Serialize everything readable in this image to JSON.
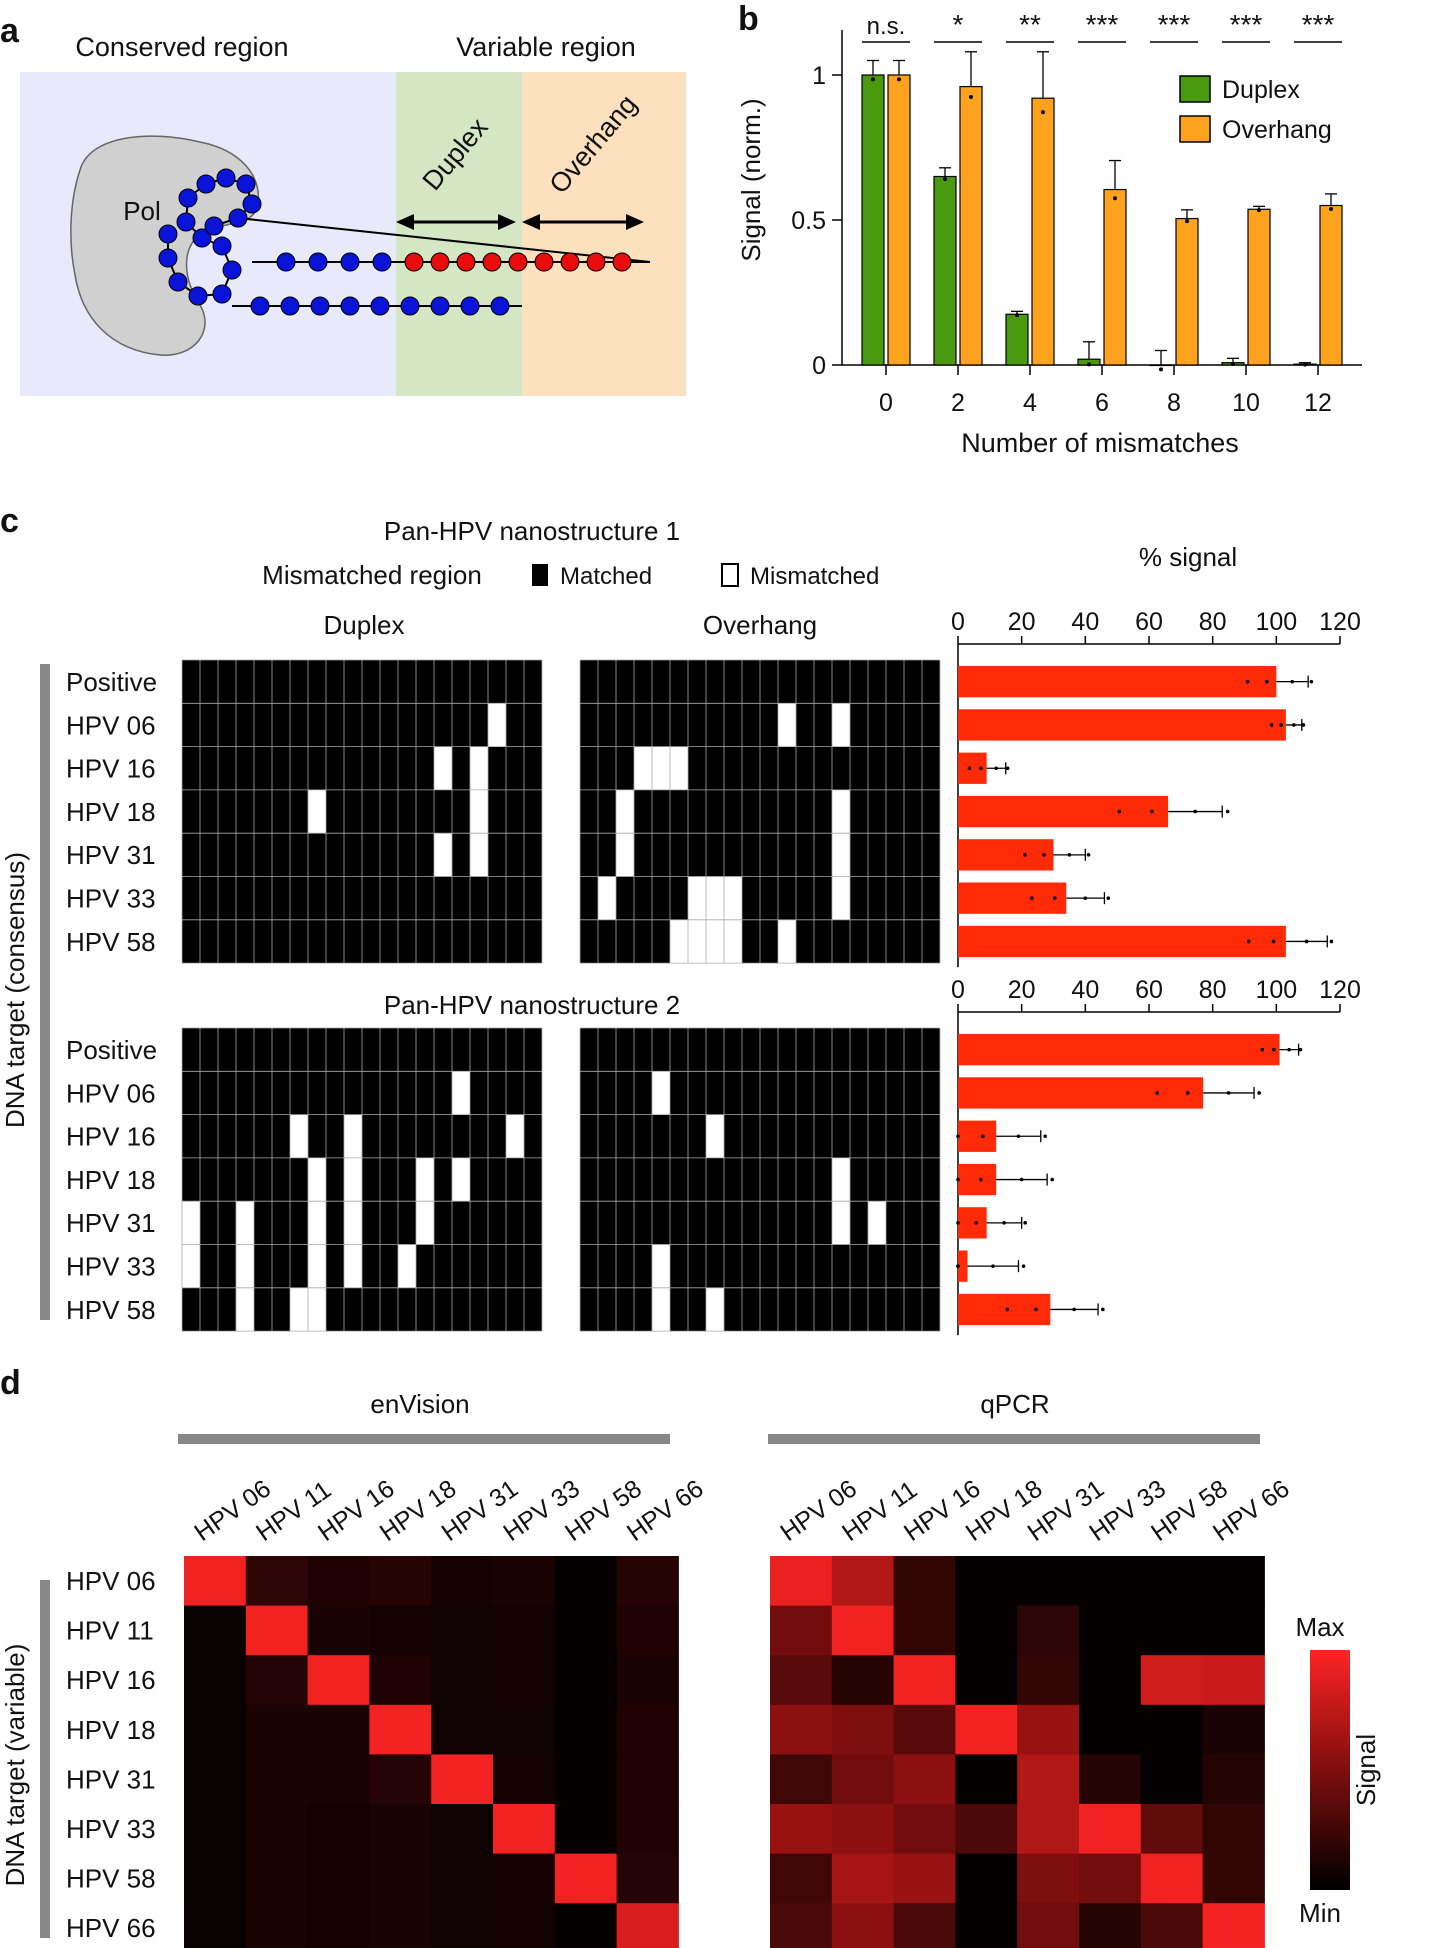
{
  "colors": {
    "duplex": "#4a9a0f",
    "overhang": "#ffa21e",
    "signal_bar": "#ff2a08",
    "conserved_bg": "#e8e9fb",
    "duplex_bg": "#d5e6c5",
    "overhang_bg": "#fde1bf",
    "node_blue": "#0a14d8",
    "node_red": "#e80c0c",
    "pol": "#d0d0d0",
    "heat_max": "#ff2424",
    "heat_min": "#000000",
    "track_gray": "#888888"
  },
  "panel_a": {
    "letter": "a",
    "conserved_label": "Conserved region",
    "variable_label": "Variable region",
    "pol_label": "Pol",
    "duplex_label": "Duplex",
    "overhang_label": "Overhang"
  },
  "panel_b": {
    "letter": "b",
    "xlabel": "Number of mismatches",
    "ylabel": "Signal (norm.)",
    "yticks": [
      "0",
      "0.5",
      "1"
    ],
    "legend": [
      "Duplex",
      "Overhang"
    ]
  },
  "panel_c": {
    "letter": "c",
    "title1": "Pan-HPV nanostructure 1",
    "title2": "Pan-HPV nanostructure 2",
    "mismatch_label": "Mismatched region",
    "matched_label": "Matched",
    "mismatched_label": "Mismatched",
    "duplex_label": "Duplex",
    "overhang_label": "Overhang",
    "signal_label": "% signal",
    "yaxis_label": "DNA target (consensus)",
    "row_labels": [
      "Positive",
      "HPV 06",
      "HPV 16",
      "HPV 18",
      "HPV 31",
      "HPV 33",
      "HPV 58"
    ],
    "xticks": [
      "0",
      "20",
      "40",
      "60",
      "80",
      "100",
      "120"
    ],
    "grid_white": {
      "s1_duplex": [
        [],
        [
          18
        ],
        [
          15,
          17
        ],
        [
          8,
          17
        ],
        [
          15,
          17
        ],
        [],
        []
      ],
      "s1_overhang": [
        [],
        [
          12,
          15
        ],
        [
          4,
          5,
          6
        ],
        [
          3,
          15
        ],
        [
          3,
          15
        ],
        [
          2,
          7,
          8,
          9,
          15
        ],
        [
          6,
          7,
          8,
          9,
          12
        ]
      ],
      "s2_duplex": [
        [],
        [
          16
        ],
        [
          7,
          10,
          19
        ],
        [
          8,
          10,
          14,
          16
        ],
        [
          1,
          4,
          8,
          10,
          14
        ],
        [
          1,
          4,
          8,
          10,
          13
        ],
        [
          4,
          7,
          8
        ]
      ],
      "s2_overhang": [
        [],
        [
          5
        ],
        [
          8
        ],
        [
          15
        ],
        [
          15,
          17
        ],
        [
          5
        ],
        [
          5,
          8
        ]
      ]
    }
  },
  "panel_d": {
    "letter": "d",
    "envision_label": "enVision",
    "qpcr_label": "qPCR",
    "yaxis_label": "DNA target (variable)",
    "col_labels": [
      "HPV 06",
      "HPV 11",
      "HPV 16",
      "HPV 18",
      "HPV 31",
      "HPV 33",
      "HPV 58",
      "HPV 66"
    ],
    "row_labels": [
      "HPV 06",
      "HPV 11",
      "HPV 16",
      "HPV 18",
      "HPV 31",
      "HPV 33",
      "HPV 58",
      "HPV 66"
    ],
    "colorbar_max": "Max",
    "colorbar_min": "Min",
    "colorbar_label": "Signal"
  },
  "chart_data": [
    {
      "type": "bar",
      "panel": "b",
      "categories": [
        "0",
        "2",
        "4",
        "6",
        "8",
        "10",
        "12"
      ],
      "series": [
        {
          "name": "Duplex",
          "values": [
            1.0,
            0.65,
            0.175,
            0.02,
            0.0,
            0.008,
            0.003
          ],
          "errors": [
            0.05,
            0.03,
            0.01,
            0.06,
            0.05,
            0.015,
            0.005
          ]
        },
        {
          "name": "Overhang",
          "values": [
            1.0,
            0.96,
            0.92,
            0.605,
            0.505,
            0.537,
            0.55
          ],
          "errors": [
            0.05,
            0.12,
            0.16,
            0.1,
            0.03,
            0.01,
            0.04
          ]
        }
      ],
      "significance": [
        "n.s.",
        "*",
        "**",
        "***",
        "***",
        "***",
        "***"
      ],
      "xlabel": "Number of mismatches",
      "ylabel": "Signal (norm.)",
      "ylim": [
        0,
        1.1
      ]
    },
    {
      "type": "bar",
      "panel": "c1",
      "orientation": "horizontal",
      "categories": [
        "Positive",
        "HPV 06",
        "HPV 16",
        "HPV 18",
        "HPV 31",
        "HPV 33",
        "HPV 58"
      ],
      "values": [
        100,
        103,
        9,
        66,
        30,
        34,
        103
      ],
      "errors": [
        10,
        5,
        6,
        17,
        10,
        12,
        13
      ],
      "title": "Pan-HPV nanostructure 1",
      "xlabel": "% signal",
      "xlim": [
        0,
        120
      ]
    },
    {
      "type": "bar",
      "panel": "c2",
      "orientation": "horizontal",
      "categories": [
        "Positive",
        "HPV 06",
        "HPV 16",
        "HPV 18",
        "HPV 31",
        "HPV 33",
        "HPV 58"
      ],
      "values": [
        101,
        77,
        12,
        12,
        9,
        3,
        29
      ],
      "errors": [
        6,
        16,
        14,
        16,
        11,
        16,
        15
      ],
      "title": "Pan-HPV nanostructure 2",
      "xlabel": "% signal",
      "xlim": [
        0,
        120
      ]
    },
    {
      "type": "heatmap",
      "panel": "d-enVision",
      "title": "enVision",
      "x": [
        "HPV 06",
        "HPV 11",
        "HPV 16",
        "HPV 18",
        "HPV 31",
        "HPV 33",
        "HPV 58",
        "HPV 66"
      ],
      "y": [
        "HPV 06",
        "HPV 11",
        "HPV 16",
        "HPV 18",
        "HPV 31",
        "HPV 33",
        "HPV 58",
        "HPV 66"
      ],
      "values": [
        [
          0.95,
          0.18,
          0.12,
          0.15,
          0.08,
          0.1,
          0.02,
          0.15
        ],
        [
          0.04,
          0.95,
          0.1,
          0.08,
          0.06,
          0.08,
          0.02,
          0.12
        ],
        [
          0.04,
          0.14,
          0.95,
          0.12,
          0.06,
          0.08,
          0.02,
          0.1
        ],
        [
          0.04,
          0.1,
          0.1,
          0.95,
          0.06,
          0.06,
          0.02,
          0.12
        ],
        [
          0.04,
          0.1,
          0.1,
          0.14,
          0.95,
          0.08,
          0.02,
          0.12
        ],
        [
          0.04,
          0.1,
          0.08,
          0.1,
          0.06,
          0.95,
          0.02,
          0.12
        ],
        [
          0.04,
          0.1,
          0.08,
          0.1,
          0.06,
          0.08,
          0.95,
          0.14
        ],
        [
          0.03,
          0.1,
          0.08,
          0.1,
          0.06,
          0.08,
          0.02,
          0.85
        ]
      ],
      "scale": [
        "Min",
        "Max"
      ]
    },
    {
      "type": "heatmap",
      "panel": "d-qPCR",
      "title": "qPCR",
      "x": [
        "HPV 06",
        "HPV 11",
        "HPV 16",
        "HPV 18",
        "HPV 31",
        "HPV 33",
        "HPV 58",
        "HPV 66"
      ],
      "y": [
        "HPV 06",
        "HPV 11",
        "HPV 16",
        "HPV 18",
        "HPV 31",
        "HPV 33",
        "HPV 58",
        "HPV 66"
      ],
      "values": [
        [
          0.92,
          0.7,
          0.2,
          0.02,
          0.02,
          0.02,
          0.02,
          0.02
        ],
        [
          0.45,
          0.95,
          0.2,
          0.02,
          0.18,
          0.02,
          0.02,
          0.02
        ],
        [
          0.35,
          0.15,
          0.95,
          0.02,
          0.2,
          0.02,
          0.82,
          0.8
        ],
        [
          0.55,
          0.5,
          0.35,
          0.95,
          0.6,
          0.02,
          0.02,
          0.1
        ],
        [
          0.25,
          0.45,
          0.55,
          0.02,
          0.7,
          0.15,
          0.02,
          0.15
        ],
        [
          0.6,
          0.55,
          0.45,
          0.3,
          0.7,
          0.95,
          0.38,
          0.2
        ],
        [
          0.25,
          0.65,
          0.6,
          0.02,
          0.5,
          0.45,
          0.95,
          0.2
        ],
        [
          0.3,
          0.55,
          0.3,
          0.02,
          0.45,
          0.15,
          0.3,
          0.95
        ]
      ],
      "scale": [
        "Min",
        "Max"
      ]
    }
  ]
}
